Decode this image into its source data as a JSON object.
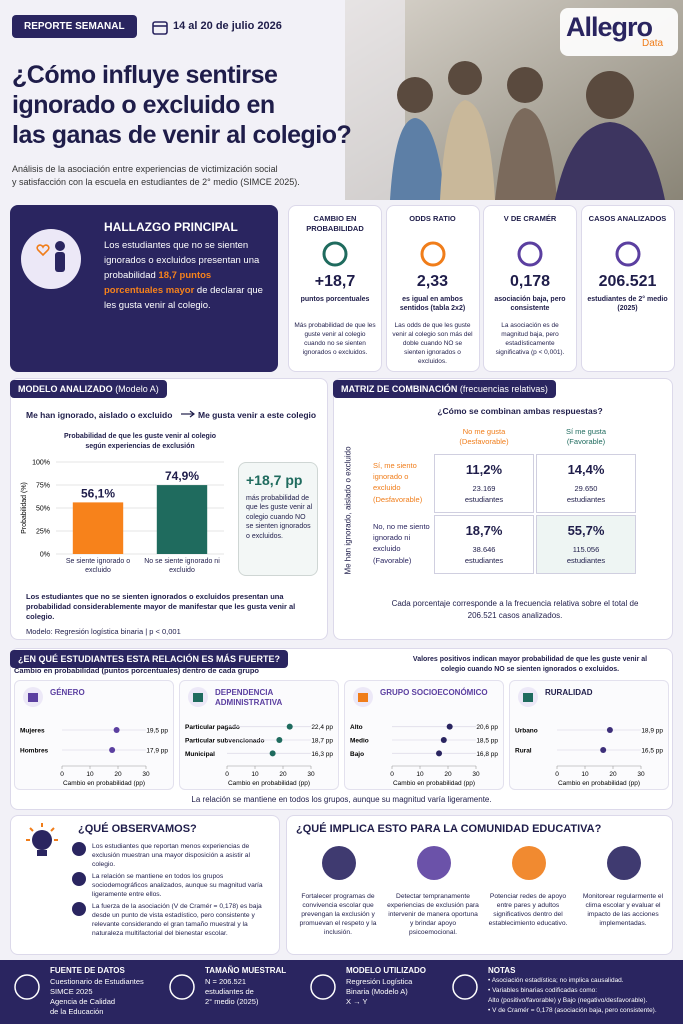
{
  "header": {
    "badge": "REPORTE SEMANAL",
    "date": "14 al 20 de julio 2026",
    "title_lines": [
      "¿Cómo influye sentirse",
      "ignorado o excluido en",
      "las ganas de venir al colegio?"
    ],
    "subtitle_lines": [
      "Análisis de la asociación entre experiencias de victimización social",
      "y satisfacción con la escuela en estudiantes de 2° medio (SIMCE 2025)."
    ],
    "logo": "Allegro",
    "logo_sub": "Data"
  },
  "finding": {
    "title": "HALLAZGO PRINCIPAL",
    "text_before": "Los estudiantes que no se sienten ignorados o excluidos presentan una probabilidad ",
    "highlight": "18,7 puntos porcentuales mayor",
    "text_after": " de declarar que les gusta venir al colegio."
  },
  "stats": [
    {
      "label": "CAMBIO EN PROBABILIDAD",
      "value": "+18,7",
      "unit": "puntos porcentuales",
      "note": "Más probabilidad de que les guste venir al colegio cuando no se sienten ignorados o excluidos."
    },
    {
      "label": "ODDS RATIO",
      "value": "2,33",
      "unit": "es igual en ambos sentidos (tabla 2x2)",
      "note": "Las odds de que les guste venir al colegio son más del doble cuando NO se sienten ignorados o excluidos."
    },
    {
      "label": "V DE CRAMÉR",
      "value": "0,178",
      "unit": "asociación baja, pero consistente",
      "note": "La asociación es de magnitud baja, pero estadísticamente significativa (p < 0,001)."
    },
    {
      "label": "CASOS ANALIZADOS",
      "value": "206.521",
      "unit": "estudiantes de 2° medio (2025)"
    }
  ],
  "model": {
    "title": "MODELO ANALIZADO",
    "title_note": "(Modelo A)",
    "arrow_left": "Me han ignorado, aislado o excluido",
    "arrow_right": "Me gusta venir a este colegio",
    "callout_value": "+18,7 pp",
    "callout_text": "más probabilidad de que les guste venir al colegio cuando NO se sienten ignorados o excluidos.",
    "summary": "Los estudiantes que no se sienten ignorados o excluidos presentan una probabilidad considerablemente mayor de manifestar que les gusta venir al colegio.",
    "footnote": "Modelo: Regresión logística binaria | p < 0,001"
  },
  "matrix": {
    "title": "MATRIZ DE COMBINACIÓN",
    "title_note": "(frecuencias relativas)",
    "question": "¿Cómo se combinan ambas respuestas?",
    "y_axis": "Me han ignorado, aislado o excluido",
    "columns": [
      {
        "label": "No me gusta",
        "sub": "(Desfavorable)"
      },
      {
        "label": "Sí me gusta",
        "sub": "(Favorable)"
      }
    ],
    "rows": [
      {
        "label": "Sí, me siento ignorado o excluido",
        "sub": "(Desfavorable)",
        "cells": [
          {
            "pct": "11,2%",
            "n": "23.169",
            "unit": "estudiantes"
          },
          {
            "pct": "14,4%",
            "n": "29.650",
            "unit": "estudiantes"
          }
        ]
      },
      {
        "label": "No, no me siento ignorado ni excluido",
        "sub": "(Favorable)",
        "cells": [
          {
            "pct": "18,7%",
            "n": "38.646",
            "unit": "estudiantes"
          },
          {
            "pct": "55,7%",
            "n": "115.056",
            "unit": "estudiantes"
          }
        ]
      }
    ],
    "note": "Cada porcentaje corresponde a la frecuencia relativa sobre el total de 206.521 casos analizados."
  },
  "groups": {
    "title": "¿EN QUÉ ESTUDIANTES ESTA RELACIÓN ES MÁS FUERTE?",
    "subtitle": "Cambio en probabilidad (puntos porcentuales) dentro de cada grupo",
    "note": "Valores positivos indican mayor probabilidad de que les guste venir al colegio cuando NO se sienten ignorados o excluidos.",
    "footer": "La relación se mantiene en todos los grupos, aunque su magnitud varía ligeramente."
  },
  "chart_data": [
    {
      "type": "bar",
      "title": "Probabilidad de que les guste venir al colegio según experiencias de exclusión",
      "ylabel": "Probabilidad (%)",
      "categories": [
        "Se siente ignorado o excluido",
        "No se siente ignorado ni excluido"
      ],
      "values": [
        56.1,
        74.9
      ],
      "value_labels": [
        "56,1%",
        "74,9%"
      ],
      "colors": [
        "#f7821b",
        "#1f6b5e"
      ],
      "ylim": [
        0,
        100
      ],
      "yticks": [
        {
          "value": 0,
          "label": "0%"
        },
        {
          "value": 25,
          "label": "25%"
        },
        {
          "value": 50,
          "label": "50%"
        },
        {
          "value": 75,
          "label": "75%"
        },
        {
          "value": 100,
          "label": "100%"
        }
      ],
      "grid": true
    },
    {
      "type": "dot",
      "title": "GÉNERO",
      "categories": [
        "Mujeres",
        "Hombres"
      ],
      "values": [
        19.5,
        17.9
      ],
      "value_labels": [
        "19,5 pp",
        "17,9 pp"
      ],
      "color": "#5b3fa0",
      "xlabel": "Cambio en probabilidad (pp)",
      "xlim": [
        0,
        30
      ],
      "xticks": [
        0,
        10,
        20,
        30
      ]
    },
    {
      "type": "dot",
      "title": "DEPENDENCIA ADMINISTRATIVA",
      "categories": [
        "Particular pagado",
        "Particular subvencionado",
        "Municipal"
      ],
      "values": [
        22.4,
        18.7,
        16.3
      ],
      "value_labels": [
        "22,4 pp",
        "18,7 pp",
        "16,3 pp"
      ],
      "color": "#1f6b5e",
      "xlabel": "Cambio en probabilidad (pp)",
      "xlim": [
        0,
        30
      ],
      "xticks": [
        0,
        10,
        20,
        30
      ]
    },
    {
      "type": "dot",
      "title": "GRUPO SOCIOECONÓMICO",
      "categories": [
        "Alto",
        "Medio",
        "Bajo"
      ],
      "values": [
        20.6,
        18.5,
        16.8
      ],
      "value_labels": [
        "20,6 pp",
        "18,5 pp",
        "16,8 pp"
      ],
      "color": "#2a2560",
      "xlabel": "Cambio en probabilidad (pp)",
      "xlim": [
        0,
        30
      ],
      "xticks": [
        0,
        10,
        20,
        30
      ]
    },
    {
      "type": "dot",
      "title": "RURALIDAD",
      "categories": [
        "Urbano",
        "Rural"
      ],
      "values": [
        18.9,
        16.5
      ],
      "value_labels": [
        "18,9 pp",
        "16,5 pp"
      ],
      "color": "#3d2f7a",
      "xlabel": "Cambio en probabilidad (pp)",
      "xlim": [
        0,
        30
      ],
      "xticks": [
        0,
        10,
        20,
        30
      ]
    }
  ],
  "observe": {
    "title": "¿QUÉ OBSERVAMOS?",
    "items": [
      "Los estudiantes que reportan menos experiencias de exclusión muestran una mayor disposición a asistir al colegio.",
      "La relación se mantiene en todos los grupos sociodemográficos analizados, aunque su magnitud varía ligeramente entre ellos.",
      "La fuerza de la asociación (V de Cramér = 0,178) es baja desde un punto de vista estadístico, pero consistente y relevante considerando el gran tamaño muestral y la naturaleza multifactorial del bienestar escolar."
    ]
  },
  "implications": {
    "title": "¿QUÉ IMPLICA ESTO PARA LA COMUNIDAD EDUCATIVA?",
    "items": [
      "Fortalecer programas de convivencia escolar que prevengan la exclusión y promuevan el respeto y la inclusión.",
      "Detectar tempranamente experiencias de exclusión para intervenir de manera oportuna y brindar apoyo psicoemocional.",
      "Potenciar redes de apoyo entre pares y adultos significativos dentro del establecimiento educativo.",
      "Monitorear regularmente el clima escolar y evaluar el impacto de las acciones implementadas."
    ]
  },
  "footer": [
    {
      "title": "FUENTE DE DATOS",
      "lines": [
        "Cuestionario de Estudiantes",
        "SIMCE 2025",
        "Agencia de Calidad",
        "de la Educación"
      ]
    },
    {
      "title": "TAMAÑO MUESTRAL",
      "lines": [
        "N = 206.521",
        "estudiantes de",
        "2° medio (2025)"
      ]
    },
    {
      "title": "MODELO UTILIZADO",
      "lines": [
        "Regresión Logística",
        "Binaria (Modelo A)",
        "X → Y"
      ]
    },
    {
      "title": "NOTAS",
      "lines": [
        "• Asociación estadística; no implica causalidad.",
        "• Variables binarias codificadas como:",
        "Alto (positivo/favorable) y Bajo (negativo/desfavorable).",
        "• V de Cramér = 0,178 (asociación baja, pero consistente)."
      ]
    }
  ]
}
